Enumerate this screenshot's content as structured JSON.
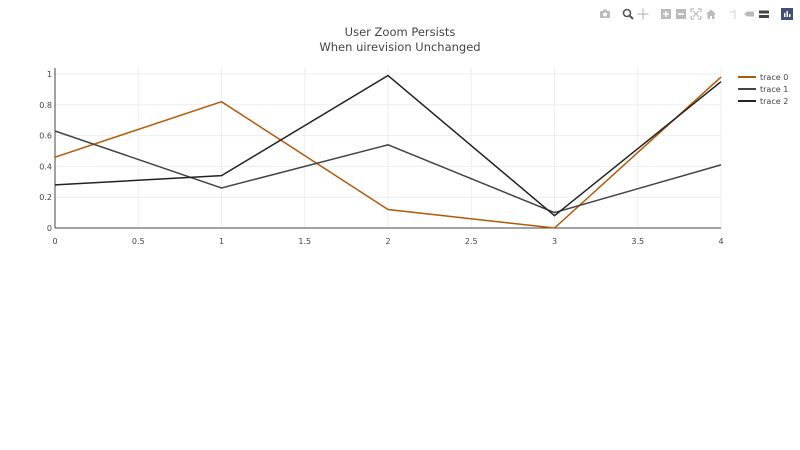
{
  "chart_data": {
    "type": "line",
    "title": "User Zoom Persists",
    "subtitle": "When uirevision Unchanged",
    "xlabel": "",
    "ylabel": "",
    "x": [
      0,
      1,
      2,
      3,
      4
    ],
    "xlim": [
      0,
      4
    ],
    "ylim": [
      0,
      1
    ],
    "x_ticks": [
      "0",
      "0.5",
      "1",
      "1.5",
      "2",
      "2.5",
      "3",
      "3.5",
      "4"
    ],
    "y_ticks": [
      "0",
      "0.2",
      "0.4",
      "0.6",
      "0.8",
      "1"
    ],
    "grid": true,
    "legend_position": "right",
    "series": [
      {
        "name": "trace 0",
        "color": "#b35806",
        "values": [
          0.46,
          0.82,
          0.12,
          0.0,
          0.98
        ]
      },
      {
        "name": "trace 1",
        "color": "#444444",
        "values": [
          0.63,
          0.26,
          0.54,
          0.1,
          0.41
        ]
      },
      {
        "name": "trace 2",
        "color": "#222222",
        "values": [
          0.28,
          0.34,
          0.99,
          0.08,
          0.95
        ]
      }
    ]
  },
  "modebar": {
    "buttons": [
      "camera-icon",
      "zoom-icon",
      "pan-icon",
      "zoom-in-icon",
      "zoom-out-icon",
      "autoscale-icon",
      "home-icon",
      "spike-lines-icon",
      "hover-closest-icon",
      "hover-compare-icon",
      "plotly-logo-icon"
    ]
  }
}
